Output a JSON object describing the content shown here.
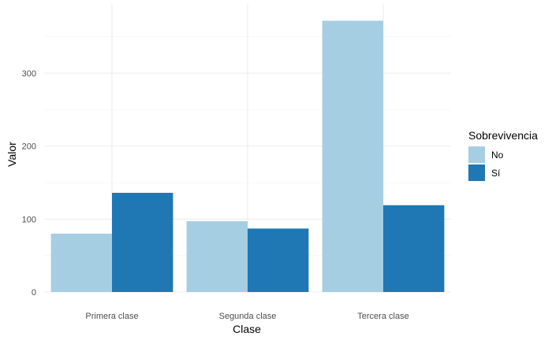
{
  "chart_data": {
    "type": "bar",
    "categories": [
      "Primera clase",
      "Segunda clase",
      "Tercera clase"
    ],
    "series": [
      {
        "name": "No",
        "values": [
          80,
          97,
          372
        ],
        "color": "#a6cee3"
      },
      {
        "name": "Sí",
        "values": [
          136,
          87,
          119
        ],
        "color": "#1f78b4"
      }
    ],
    "title": "",
    "xlabel": "Clase",
    "ylabel": "Valor",
    "ylim": [
      0,
      372
    ],
    "yticks": [
      0,
      100,
      200,
      300
    ],
    "grid": true,
    "legend": {
      "title": "Sobrevivencia",
      "position": "right"
    }
  }
}
